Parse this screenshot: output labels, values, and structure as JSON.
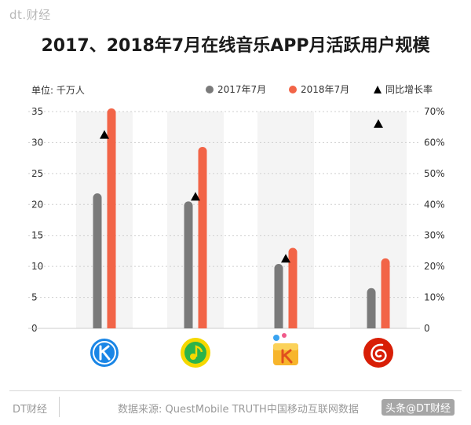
{
  "brand": "dt.财经",
  "chart_data": {
    "type": "bar",
    "title": "2017、2018年7月在线音乐APP月活跃用户规模",
    "ylabel": "单位: 千万人",
    "categories": [
      "酷狗音乐",
      "QQ音乐",
      "酷我音乐",
      "网易云音乐"
    ],
    "series": [
      {
        "name": "2017年7月",
        "values": [
          21.8,
          20.5,
          10.4,
          6.5
        ],
        "color": "#7a7a7a"
      },
      {
        "name": "2018年7月",
        "values": [
          35.5,
          29.3,
          13.0,
          11.3
        ],
        "color": "#f26447"
      }
    ],
    "growth": {
      "name": "同比增长率",
      "values": [
        62.5,
        42.5,
        22.5,
        66.0
      ],
      "color": "#000000"
    },
    "ylim": [
      0,
      35
    ],
    "yticks": [
      0,
      5,
      10,
      15,
      20,
      25,
      30,
      35
    ],
    "y2lim": [
      0,
      70
    ],
    "y2ticks": [
      "0",
      "10%",
      "20%",
      "30%",
      "40%",
      "50%",
      "60%",
      "70%"
    ],
    "grid": true,
    "legend_position": "top-right"
  },
  "icons": [
    "kugou-icon",
    "qqmusic-icon",
    "kuwo-icon",
    "netease-icon"
  ],
  "footer": {
    "brand": "DT财经",
    "source": "数据来源: QuestMobile TRUTH中国移动互联网数据",
    "watermark": "头条@DT财经"
  }
}
